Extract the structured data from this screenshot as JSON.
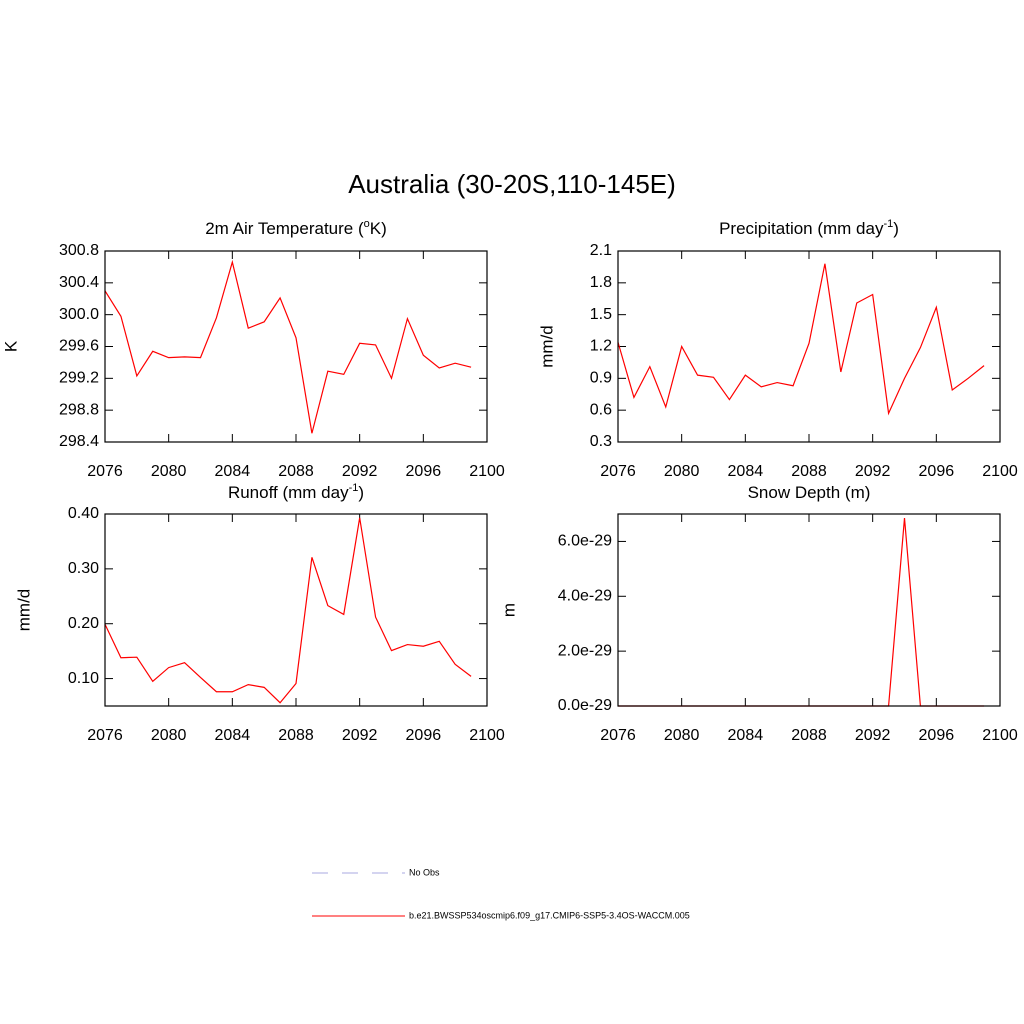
{
  "title": "Australia (30-20S,110-145E)",
  "legend": [
    {
      "label": "No Obs",
      "color": "#a8a8e0",
      "dashed": true
    },
    {
      "label": "b.e21.BWSSP534oscmip6.f09_g17.CMIP6-SSP5-3.4OS-WACCM.005",
      "color": "#ff0000",
      "dashed": false
    }
  ],
  "chart_data": [
    {
      "type": "line",
      "title": [
        {
          "text": "2m Air Temperature ("
        },
        {
          "text": "o",
          "sup": true
        },
        {
          "text": "K)"
        }
      ],
      "y_label": "K",
      "x": [
        2076,
        2077,
        2078,
        2079,
        2080,
        2081,
        2082,
        2083,
        2084,
        2085,
        2086,
        2087,
        2088,
        2089,
        2090,
        2091,
        2092,
        2093,
        2094,
        2095,
        2096,
        2097,
        2098,
        2099
      ],
      "series": [
        {
          "color": "#ff0000",
          "values": [
            300.3,
            299.98,
            299.23,
            299.54,
            299.46,
            299.47,
            299.46,
            299.96,
            300.66,
            299.83,
            299.91,
            300.21,
            299.71,
            298.51,
            299.29,
            299.25,
            299.64,
            299.62,
            299.2,
            299.95,
            299.49,
            299.33,
            299.39,
            299.34
          ]
        }
      ],
      "xlim": [
        2076,
        2100
      ],
      "xticks": [
        2076,
        2080,
        2084,
        2088,
        2092,
        2096,
        2100
      ],
      "ylim": [
        298.4,
        300.8
      ],
      "yticks": [
        298.4,
        298.8,
        {
          "value": 299.2,
          "label": "299.2"
        },
        299.6,
        {
          "value": 300,
          "label": "300.0"
        },
        300.4,
        300.8
      ]
    },
    {
      "type": "line",
      "title": [
        {
          "text": "Precipitation (mm day"
        },
        {
          "text": "-1",
          "sup": true
        },
        {
          "text": ")"
        }
      ],
      "y_label": "mm/d",
      "x": [
        2076,
        2077,
        2078,
        2079,
        2080,
        2081,
        2082,
        2083,
        2084,
        2085,
        2086,
        2087,
        2088,
        2089,
        2090,
        2091,
        2092,
        2093,
        2094,
        2095,
        2096,
        2097,
        2098,
        2099
      ],
      "series": [
        {
          "color": "#ff0000",
          "values": [
            1.24,
            0.72,
            1.01,
            0.63,
            1.2,
            0.93,
            0.91,
            0.7,
            0.93,
            0.82,
            0.86,
            0.83,
            1.23,
            1.98,
            0.96,
            1.61,
            1.69,
            0.57,
            0.9,
            1.19,
            1.57,
            0.79,
            0.9,
            1.02
          ]
        }
      ],
      "xlim": [
        2076,
        2100
      ],
      "xticks": [
        2076,
        2080,
        2084,
        2088,
        2092,
        2096,
        2100
      ],
      "ylim": [
        0.3,
        2.1
      ],
      "yticks": [
        0.3,
        0.6,
        0.9,
        {
          "value": 1.2,
          "label": "1.2"
        },
        1.5,
        1.8,
        2.1
      ]
    },
    {
      "type": "line",
      "title": [
        {
          "text": "Runoff (mm day"
        },
        {
          "text": "-1",
          "sup": true
        },
        {
          "text": ")"
        }
      ],
      "y_label": "mm/d",
      "x": [
        2076,
        2077,
        2078,
        2079,
        2080,
        2081,
        2082,
        2083,
        2084,
        2085,
        2086,
        2087,
        2088,
        2089,
        2090,
        2091,
        2092,
        2093,
        2094,
        2095,
        2096,
        2097,
        2098,
        2099
      ],
      "series": [
        {
          "color": "#ff0000",
          "values": [
            0.199,
            0.138,
            0.139,
            0.095,
            0.12,
            0.129,
            0.102,
            0.076,
            0.076,
            0.089,
            0.084,
            0.056,
            0.091,
            0.321,
            0.233,
            0.217,
            0.393,
            0.212,
            0.151,
            0.162,
            0.159,
            0.168,
            0.126,
            0.104
          ]
        }
      ],
      "xlim": [
        2076,
        2100
      ],
      "xticks": [
        2076,
        2080,
        2084,
        2088,
        2092,
        2096,
        2100
      ],
      "ylim": [
        0.05,
        0.4
      ],
      "yticks": [
        {
          "value": 0.1,
          "label": "0.10"
        },
        {
          "value": 0.2,
          "label": "0.20"
        },
        {
          "value": 0.3,
          "label": "0.30"
        },
        {
          "value": 0.4,
          "label": "0.40"
        }
      ]
    },
    {
      "type": "line",
      "title": [
        {
          "text": "Snow Depth (m)"
        }
      ],
      "y_label": "m",
      "x": [
        2076,
        2077,
        2078,
        2079,
        2080,
        2081,
        2082,
        2083,
        2084,
        2085,
        2086,
        2087,
        2088,
        2089,
        2090,
        2091,
        2092,
        2093,
        2094,
        2095,
        2096,
        2097,
        2098,
        2099
      ],
      "series": [
        {
          "color": "#ff0000",
          "values": [
            0,
            0,
            0,
            0,
            0,
            0,
            0,
            0,
            0,
            0,
            0,
            0,
            0,
            0,
            0,
            0,
            0,
            0,
            6.85e-29,
            0,
            0,
            0,
            0,
            0
          ]
        }
      ],
      "xlim": [
        2076,
        2100
      ],
      "xticks": [
        2076,
        2080,
        2084,
        2088,
        2092,
        2096,
        2100
      ],
      "ylim": [
        0,
        7e-29
      ],
      "yticks": [
        {
          "value": 0,
          "label": "0.0e-29"
        },
        {
          "value": 2e-29,
          "label": "2.0e-29"
        },
        {
          "value": 4e-29,
          "label": "4.0e-29"
        },
        {
          "value": 6e-29,
          "label": "6.0e-29"
        }
      ]
    }
  ]
}
